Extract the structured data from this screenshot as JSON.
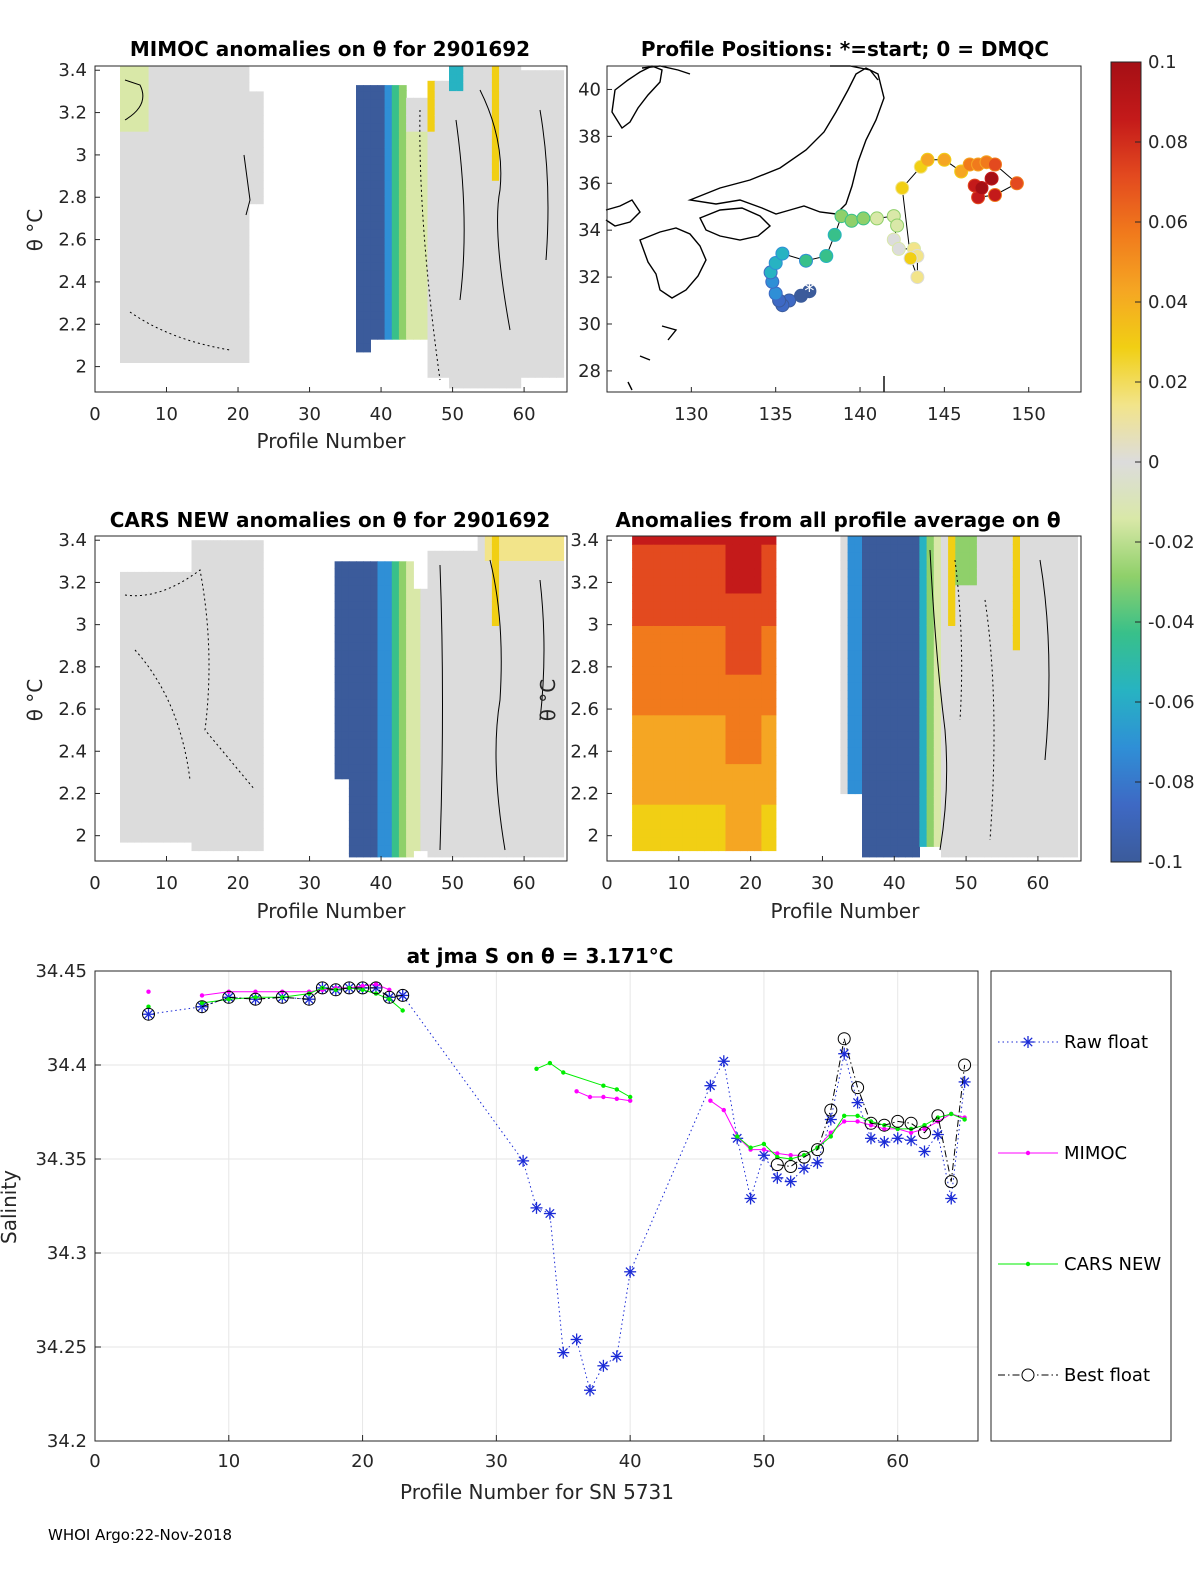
{
  "footer": "WHOI Argo:22-Nov-2018",
  "colors": {
    "ramp": [
      "#3b5b9b",
      "#3e69c4",
      "#2f8fd6",
      "#27b3c2",
      "#38c08a",
      "#8fd06a",
      "#d9e8a8",
      "#dcdcdc",
      "#f2e48a",
      "#f1cf14",
      "#f5a623",
      "#f17a1c",
      "#e34a1f",
      "#c41a1a",
      "#a50f15"
    ],
    "raw": "#1b2bd6",
    "mimoc": "#ff00ff",
    "cars": "#00ee00",
    "best": "#000000"
  },
  "panel1": {
    "title": "MIMOC anomalies on θ  for 2901692",
    "ylabel": "θ °C",
    "xlabel": "Profile Number",
    "xticks": [
      "0",
      "10",
      "20",
      "30",
      "40",
      "50",
      "60"
    ],
    "yticks": [
      "2",
      "2.2",
      "2.4",
      "2.6",
      "2.8",
      "3",
      "3.2",
      "3.4"
    ]
  },
  "panel2": {
    "title": "Profile Positions: *=start; 0 = DMQC",
    "xticks": [
      "130",
      "135",
      "140",
      "145",
      "150"
    ],
    "yticks": [
      "28",
      "30",
      "32",
      "34",
      "36",
      "38",
      "40"
    ]
  },
  "panel3": {
    "title": "CARS NEW anomalies on θ for 2901692",
    "ylabel": "θ °C",
    "xlabel": "Profile Number",
    "xticks": [
      "0",
      "10",
      "20",
      "30",
      "40",
      "50",
      "60"
    ],
    "yticks": [
      "2",
      "2.2",
      "2.4",
      "2.6",
      "2.8",
      "3",
      "3.2",
      "3.4"
    ]
  },
  "panel4": {
    "title": "Anomalies from all profile average on θ",
    "ylabel": "θ °C",
    "xlabel": "Profile Number",
    "xticks": [
      "0",
      "10",
      "20",
      "30",
      "40",
      "50",
      "60"
    ],
    "yticks": [
      "2",
      "2.2",
      "2.4",
      "2.6",
      "2.8",
      "3",
      "3.2",
      "3.4"
    ]
  },
  "colorbar": {
    "ticks": [
      "0.1",
      "0.08",
      "0.06",
      "0.04",
      "0.02",
      "0",
      "-0.02",
      "-0.04",
      "-0.06",
      "-0.08",
      "-0.1"
    ]
  },
  "chart_data": {
    "type": "line",
    "title": "at jma S on θ = 3.171°C",
    "xlabel": "Profile Number for SN 5731",
    "ylabel": "Salinity",
    "xlim": [
      0,
      66
    ],
    "ylim": [
      34.2,
      34.45
    ],
    "xticks": [
      "0",
      "10",
      "20",
      "30",
      "40",
      "50",
      "60"
    ],
    "yticks": [
      "34.2",
      "34.25",
      "34.3",
      "34.35",
      "34.4",
      "34.45"
    ],
    "series": [
      {
        "name": "Raw float",
        "style": "dotted-star",
        "x": [
          4,
          8,
          10,
          12,
          14,
          16,
          17,
          18,
          19,
          20,
          21,
          22,
          23,
          32,
          33,
          34,
          35,
          36,
          37,
          38,
          39,
          40,
          46,
          47,
          48,
          49,
          50,
          51,
          52,
          53,
          54,
          55,
          56,
          57,
          58,
          59,
          60,
          61,
          62,
          63,
          64,
          65
        ],
        "y": [
          34.427,
          34.431,
          34.436,
          34.435,
          34.436,
          34.435,
          34.441,
          34.44,
          34.441,
          34.441,
          34.441,
          34.436,
          34.437,
          34.349,
          34.324,
          34.321,
          34.247,
          34.254,
          34.227,
          34.24,
          34.245,
          34.29,
          34.389,
          34.402,
          34.361,
          34.329,
          34.352,
          34.34,
          34.338,
          34.345,
          34.348,
          34.371,
          34.406,
          34.38,
          34.361,
          34.359,
          34.361,
          34.36,
          34.354,
          34.363,
          34.329,
          34.391
        ]
      },
      {
        "name": "MIMOC",
        "style": "solid-dot",
        "x": [
          4,
          8,
          10,
          12,
          14,
          16,
          17,
          18,
          19,
          20,
          21,
          22,
          36,
          37,
          38,
          39,
          40,
          46,
          47,
          48,
          49,
          50,
          51,
          52,
          53,
          54,
          55,
          56,
          57,
          58,
          59,
          60,
          61,
          62,
          63,
          64,
          65
        ],
        "y": [
          34.439,
          34.437,
          34.439,
          34.439,
          34.439,
          34.439,
          34.44,
          34.441,
          34.441,
          34.442,
          34.443,
          34.44,
          34.386,
          34.383,
          34.383,
          34.382,
          34.381,
          34.381,
          34.376,
          34.362,
          34.355,
          34.355,
          34.353,
          34.352,
          34.352,
          34.356,
          34.364,
          34.37,
          34.37,
          34.368,
          34.366,
          34.366,
          34.364,
          34.366,
          34.37,
          34.374,
          34.372
        ]
      },
      {
        "name": "CARS NEW",
        "style": "solid-dot",
        "x": [
          4,
          8,
          10,
          12,
          14,
          16,
          17,
          18,
          19,
          20,
          21,
          22,
          23,
          33,
          34,
          35,
          38,
          39,
          40,
          48,
          49,
          50,
          51,
          52,
          53,
          54,
          55,
          56,
          57,
          58,
          59,
          60,
          61,
          62,
          63,
          64,
          65
        ],
        "y": [
          34.431,
          34.433,
          34.435,
          34.436,
          34.436,
          34.438,
          34.441,
          34.44,
          34.441,
          34.44,
          34.438,
          34.435,
          34.429,
          34.398,
          34.401,
          34.396,
          34.389,
          34.387,
          34.383,
          34.362,
          34.356,
          34.358,
          34.351,
          34.35,
          34.352,
          34.356,
          34.362,
          34.373,
          34.373,
          34.37,
          34.368,
          34.366,
          34.366,
          34.368,
          34.372,
          34.374,
          34.371
        ]
      },
      {
        "name": "Best float",
        "style": "dashdot-circle",
        "x": [
          4,
          8,
          10,
          12,
          14,
          16,
          17,
          18,
          19,
          20,
          21,
          22,
          23,
          51,
          52,
          53,
          54,
          55,
          56,
          57,
          58,
          59,
          60,
          61,
          62,
          63,
          64,
          65
        ],
        "y": [
          34.427,
          34.431,
          34.436,
          34.435,
          34.436,
          34.435,
          34.441,
          34.44,
          34.441,
          34.441,
          34.441,
          34.436,
          34.437,
          34.347,
          34.346,
          34.351,
          34.355,
          34.376,
          34.414,
          34.388,
          34.369,
          34.368,
          34.37,
          34.369,
          34.364,
          34.373,
          34.338,
          34.4
        ]
      }
    ]
  }
}
